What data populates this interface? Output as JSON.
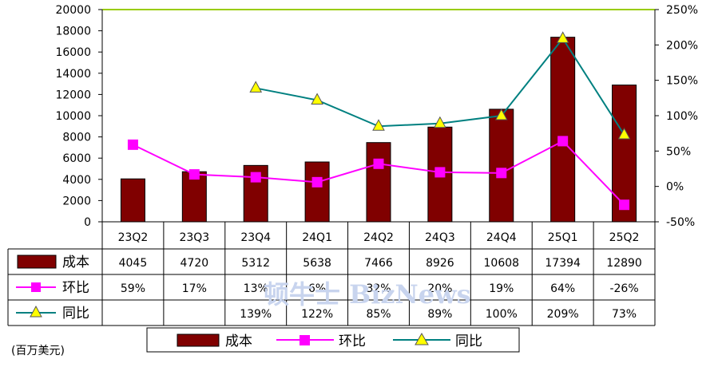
{
  "chart_data": {
    "type": "bar",
    "categories": [
      "23Q2",
      "23Q3",
      "23Q4",
      "24Q1",
      "24Q2",
      "24Q3",
      "24Q4",
      "25Q1",
      "25Q2"
    ],
    "series": [
      {
        "name": "成本",
        "kind": "bar",
        "axis": "left",
        "values": [
          4045,
          4720,
          5312,
          5638,
          7466,
          8926,
          10608,
          17394,
          12890
        ],
        "labels": [
          "4045",
          "4720",
          "5312",
          "5638",
          "7466",
          "8926",
          "10608",
          "17394",
          "12890"
        ]
      },
      {
        "name": "环比",
        "kind": "line",
        "axis": "right",
        "values": [
          59,
          17,
          13,
          6,
          32,
          20,
          19,
          64,
          -26
        ],
        "labels": [
          "59%",
          "17%",
          "13%",
          "6%",
          "32%",
          "20%",
          "19%",
          "64%",
          "-26%"
        ]
      },
      {
        "name": "同比",
        "kind": "line",
        "axis": "right",
        "values": [
          null,
          null,
          139,
          122,
          85,
          89,
          100,
          209,
          73
        ],
        "labels": [
          "",
          "",
          "139%",
          "122%",
          "85%",
          "89%",
          "100%",
          "209%",
          "73%"
        ]
      }
    ],
    "y_left": {
      "min": 0,
      "max": 20000,
      "step": 2000,
      "ticks": [
        "0",
        "2000",
        "4000",
        "6000",
        "8000",
        "10000",
        "12000",
        "14000",
        "16000",
        "18000",
        "20000"
      ]
    },
    "y_right": {
      "min": -50,
      "max": 250,
      "step": 50,
      "ticks": [
        "-50%",
        "0%",
        "50%",
        "100%",
        "150%",
        "200%",
        "250%"
      ]
    },
    "unit_label": "(百万美元)",
    "watermark": "顿牛士 BizNews",
    "legend_position": "bottom",
    "colors": {
      "bar": "#800000",
      "qoq": "#ff00ff",
      "yoy": "#008080",
      "yoy_marker": "#ffff00",
      "plot_border": "#99cc00"
    }
  }
}
